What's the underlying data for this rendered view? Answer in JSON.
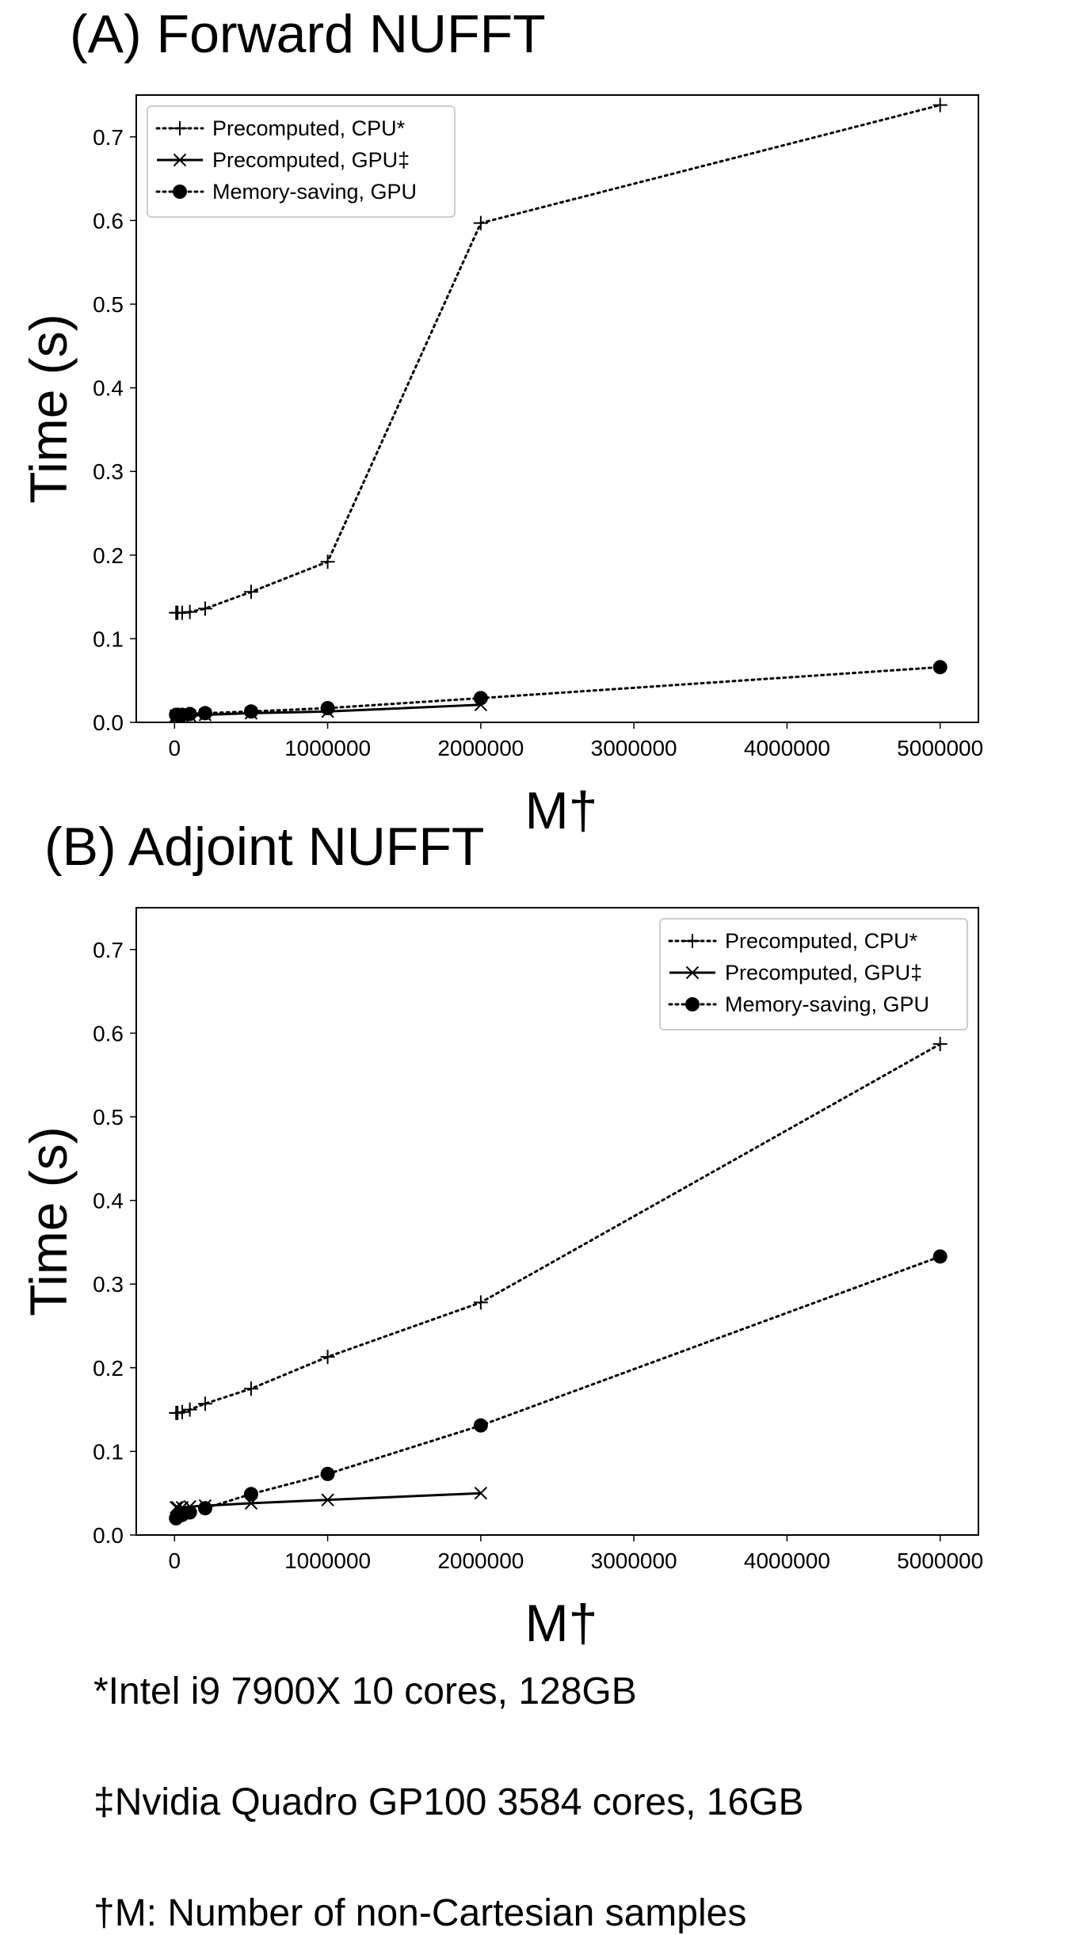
{
  "chart_data": [
    {
      "type": "line",
      "title": "(A) Forward NUFFT",
      "xlabel": "M†",
      "ylabel": "Time (s)",
      "xlim": [
        -250000,
        5250000
      ],
      "ylim": [
        0.0,
        0.75
      ],
      "x_ticks": [
        0,
        1000000,
        2000000,
        3000000,
        4000000,
        5000000
      ],
      "x_tick_labels": [
        "0",
        "1000000",
        "2000000",
        "3000000",
        "4000000",
        "5000000"
      ],
      "y_ticks": [
        0.0,
        0.1,
        0.2,
        0.3,
        0.4,
        0.5,
        0.6,
        0.7
      ],
      "y_tick_labels": [
        "0.0",
        "0.1",
        "0.2",
        "0.3",
        "0.4",
        "0.5",
        "0.6",
        "0.7"
      ],
      "legend_position": "top-left",
      "series": [
        {
          "name": "Precomputed, CPU*",
          "marker": "plus",
          "linestyle": "dotted",
          "x": [
            10000,
            20000,
            50000,
            100000,
            200000,
            500000,
            1000000,
            2000000,
            5000000
          ],
          "y": [
            0.131,
            0.131,
            0.131,
            0.132,
            0.136,
            0.156,
            0.192,
            0.597,
            0.738
          ]
        },
        {
          "name": "Precomputed, GPU‡",
          "marker": "x",
          "linestyle": "solid",
          "x": [
            10000,
            20000,
            50000,
            100000,
            200000,
            500000,
            1000000,
            2000000
          ],
          "y": [
            0.008,
            0.008,
            0.008,
            0.008,
            0.009,
            0.011,
            0.013,
            0.021
          ]
        },
        {
          "name": "Memory-saving, GPU",
          "marker": "circle",
          "linestyle": "dotted",
          "x": [
            10000,
            20000,
            50000,
            100000,
            200000,
            500000,
            1000000,
            2000000,
            5000000
          ],
          "y": [
            0.009,
            0.009,
            0.009,
            0.01,
            0.011,
            0.013,
            0.017,
            0.029,
            0.066
          ]
        }
      ]
    },
    {
      "type": "line",
      "title": "(B) Adjoint NUFFT",
      "xlabel": "M†",
      "ylabel": "Time (s)",
      "xlim": [
        -250000,
        5250000
      ],
      "ylim": [
        0.0,
        0.75
      ],
      "x_ticks": [
        0,
        1000000,
        2000000,
        3000000,
        4000000,
        5000000
      ],
      "x_tick_labels": [
        "0",
        "1000000",
        "2000000",
        "3000000",
        "4000000",
        "5000000"
      ],
      "y_ticks": [
        0.0,
        0.1,
        0.2,
        0.3,
        0.4,
        0.5,
        0.6,
        0.7
      ],
      "y_tick_labels": [
        "0.0",
        "0.1",
        "0.2",
        "0.3",
        "0.4",
        "0.5",
        "0.6",
        "0.7"
      ],
      "legend_position": "top-right",
      "series": [
        {
          "name": "Precomputed, CPU*",
          "marker": "plus",
          "linestyle": "dotted",
          "x": [
            10000,
            20000,
            50000,
            100000,
            200000,
            500000,
            1000000,
            2000000,
            5000000
          ],
          "y": [
            0.146,
            0.146,
            0.147,
            0.15,
            0.157,
            0.175,
            0.213,
            0.278,
            0.587
          ]
        },
        {
          "name": "Precomputed, GPU‡",
          "marker": "x",
          "linestyle": "solid",
          "x": [
            10000,
            20000,
            50000,
            100000,
            200000,
            500000,
            1000000,
            2000000
          ],
          "y": [
            0.033,
            0.033,
            0.033,
            0.034,
            0.035,
            0.038,
            0.042,
            0.05
          ]
        },
        {
          "name": "Memory-saving, GPU",
          "marker": "circle",
          "linestyle": "dotted",
          "x": [
            10000,
            20000,
            50000,
            100000,
            200000,
            500000,
            1000000,
            2000000,
            5000000
          ],
          "y": [
            0.02,
            0.022,
            0.024,
            0.027,
            0.032,
            0.049,
            0.073,
            0.131,
            0.333
          ]
        }
      ]
    }
  ],
  "footnotes": [
    "*Intel i9 7900X 10 cores, 128GB",
    "‡Nvidia Quadro GP100 3584 cores, 16GB",
    "†M: Number of non-Cartesian samples"
  ]
}
